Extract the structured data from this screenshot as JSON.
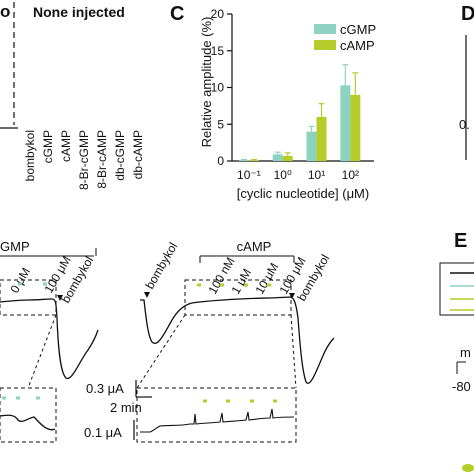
{
  "panels": {
    "top_left": {
      "label_fragment": "o",
      "group_title": "None injected",
      "conditions": [
        "bombykol",
        "cGMP",
        "cAMP",
        "8-Br-cGMP",
        "8-Br-cAMP",
        "db-cGMP",
        "db-cAMP"
      ]
    },
    "C": {
      "letter": "C",
      "chart_data": {
        "type": "bar",
        "ylabel": "Relative amplitude (%)",
        "xlabel": "[cyclic nucleotide] (μM)",
        "categories": [
          "10⁻¹",
          "10⁰",
          "10¹",
          "10²"
        ],
        "ylim": [
          0,
          20
        ],
        "yticks": [
          "0",
          "5",
          "10",
          "15",
          "20"
        ],
        "series": [
          {
            "name": "cGMP",
            "color": "#8ed3c2",
            "values": [
              0.1,
              0.9,
              4.0,
              10.3
            ],
            "errors": [
              0.1,
              0.3,
              0.7,
              2.8
            ]
          },
          {
            "name": "cAMP",
            "color": "#b5cc2a",
            "values": [
              0.1,
              0.7,
              6.0,
              9.0
            ],
            "errors": [
              0.1,
              0.4,
              1.8,
              3.0
            ]
          }
        ],
        "legend_position": "top-right"
      }
    },
    "D": {
      "letter": "D",
      "fragment": "0."
    },
    "E": {
      "letter": "E",
      "fragments": [
        "m",
        "-80"
      ]
    },
    "left_trace": {
      "title": "GMP",
      "concentrations": [
        "0 μM",
        "100 μM"
      ],
      "stimulus": "bombykol"
    },
    "right_trace": {
      "title": "cAMP",
      "pre_stimulus": "bombykol",
      "concentrations": [
        "100 nM",
        "1 μM",
        "10 μM",
        "100 μM"
      ],
      "post_stimulus": "bombykol"
    },
    "scale_bars": {
      "current": "0.3 μA",
      "time": "2 min",
      "inset_current": "0.1 μA"
    }
  }
}
